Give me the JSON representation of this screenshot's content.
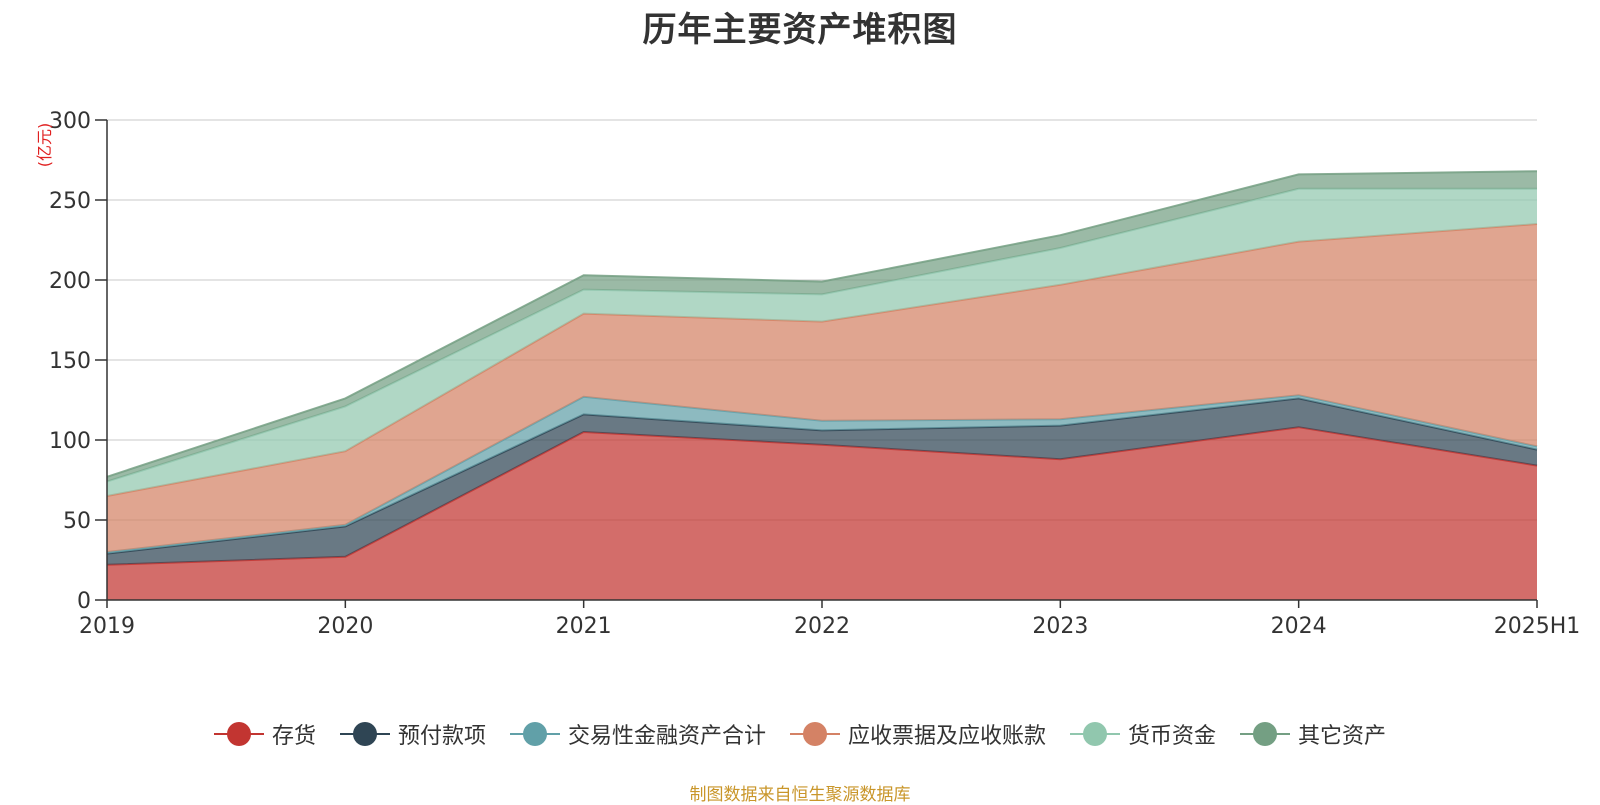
{
  "title": "历年主要资产堆积图",
  "footer": "制图数据来自恒生聚源数据库",
  "chart_data": {
    "type": "area",
    "stacked": true,
    "title": "历年主要资产堆积图",
    "unit_label": "(亿元)",
    "categories": [
      "2019",
      "2020",
      "2021",
      "2022",
      "2023",
      "2024",
      "2025H1"
    ],
    "ylim": [
      0,
      300
    ],
    "yticks": [
      0,
      50,
      100,
      150,
      200,
      250,
      300
    ],
    "grid": true,
    "legend_position": "bottom",
    "series": [
      {
        "name": "存货",
        "color": "#c23531",
        "values": [
          22,
          27,
          105,
          97,
          88,
          108,
          84
        ]
      },
      {
        "name": "预付款项",
        "color": "#2f4554",
        "values": [
          7,
          19,
          11,
          9,
          21,
          18,
          10
        ]
      },
      {
        "name": "交易性金融资产合计",
        "color": "#61a0a8",
        "values": [
          1,
          1,
          11,
          6,
          4,
          2,
          2
        ]
      },
      {
        "name": "应收票据及应收账款",
        "color": "#d48265",
        "values": [
          35,
          46,
          52,
          62,
          84,
          96,
          139
        ]
      },
      {
        "name": "货币资金",
        "color": "#91c7ae",
        "values": [
          9,
          28,
          15,
          17,
          23,
          33,
          22
        ]
      },
      {
        "name": "其它资产",
        "color": "#749f83",
        "values": [
          3,
          5,
          9,
          8,
          8,
          9,
          11
        ]
      }
    ]
  }
}
